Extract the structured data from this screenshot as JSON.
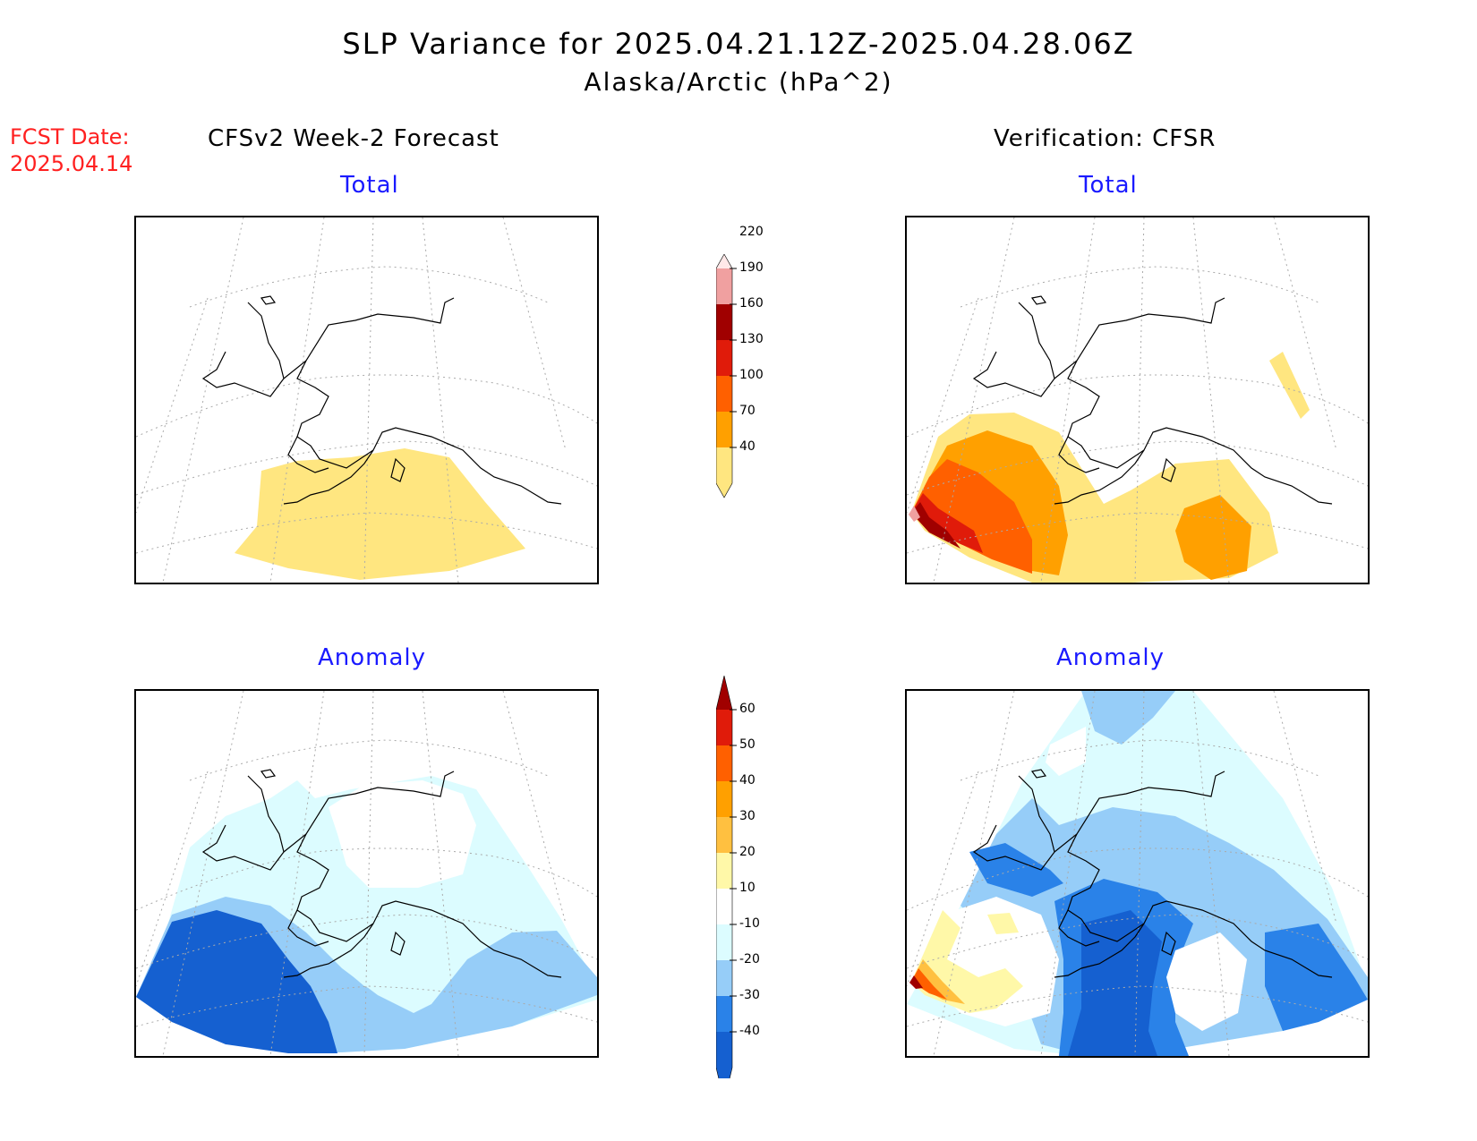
{
  "title": "SLP Variance for 2025.04.21.12Z-2025.04.28.06Z",
  "subtitle": "Alaska/Arctic (hPa^2)",
  "fcst_date": {
    "label": "FCST Date:",
    "value": "2025.04.14"
  },
  "columns": {
    "forecast": "CFSv2 Week-2 Forecast",
    "verification": "Verification: CFSR"
  },
  "panels": {
    "total_label": "Total",
    "anomaly_label": "Anomaly"
  },
  "colorbars": {
    "total": {
      "ticks": [
        "40",
        "70",
        "100",
        "130",
        "160",
        "190",
        "220"
      ],
      "colors": [
        "#ffe680",
        "#ffa000",
        "#ff6000",
        "#e01b0a",
        "#a00000",
        "#f0a0a0",
        "#ffe8e8"
      ]
    },
    "anomaly": {
      "ticks": [
        "-40",
        "-30",
        "-20",
        "-10",
        "10",
        "20",
        "30",
        "40",
        "50",
        "60"
      ],
      "colors": [
        "#1560d0",
        "#2a82e8",
        "#96cdf8",
        "#dcfcff",
        "#ffffff",
        "#fff8a8",
        "#ffc040",
        "#ffa000",
        "#ff6000",
        "#e01b0a",
        "#a00000"
      ]
    }
  }
}
